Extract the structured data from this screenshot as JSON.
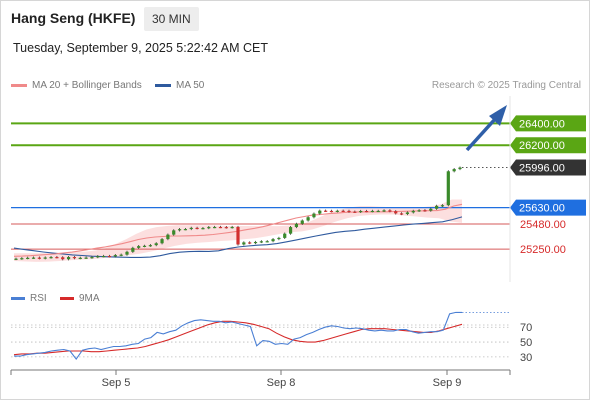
{
  "header": {
    "title": "Hang Seng (HKFE)",
    "timeframe": "30 MIN",
    "datetime": "Tuesday, September 9, 2025 5:22:42 AM CET"
  },
  "legend": {
    "items": [
      {
        "label": "MA 20 + Bollinger Bands",
        "color": "#f08a8a"
      },
      {
        "label": "MA 50",
        "color": "#2f5a9e"
      }
    ],
    "copyright": "Research © 2025 Trading Central"
  },
  "rsi_legend": {
    "items": [
      {
        "label": "RSI",
        "color": "#4a7fd4"
      },
      {
        "label": "9MA",
        "color": "#d62a2a"
      }
    ]
  },
  "colors": {
    "green_level": "#5aa614",
    "blue_level": "#1f6fe0",
    "red_level": "#d65a5a",
    "current_price": "#333333",
    "arrow": "#2f5fa8",
    "bollinger_fill": "#fbd9d9",
    "candle_up": "#3a8a2a",
    "candle_down": "#d23030"
  },
  "chart_data": [
    {
      "type": "candlestick",
      "title": "Hang Seng (HKFE)",
      "ylim": [
        24950,
        26650
      ],
      "x_ticks": [
        "Sep 5",
        "Sep 8",
        "Sep 9"
      ],
      "levels": [
        {
          "value": 26400.0,
          "label": "26400.00",
          "kind": "resistance"
        },
        {
          "value": 26200.0,
          "label": "26200.00",
          "kind": "resistance"
        },
        {
          "value": 25996.0,
          "label": "25996.00",
          "kind": "current"
        },
        {
          "value": 25630.0,
          "label": "25630.00",
          "kind": "pivot"
        },
        {
          "value": 25480.0,
          "label": "25480.00",
          "kind": "support"
        },
        {
          "value": 25250.0,
          "label": "25250.00",
          "kind": "support"
        }
      ],
      "close": [
        25163,
        25168,
        25171,
        25173,
        25167,
        25174,
        25178,
        25176,
        25158,
        25178,
        25168,
        25171,
        25173,
        25178,
        25186,
        25188,
        25184,
        25196,
        25200,
        25226,
        25262,
        25278,
        25281,
        25287,
        25304,
        25342,
        25383,
        25422,
        25433,
        25434,
        25445,
        25441,
        25443,
        25452,
        25453,
        25452,
        25448,
        25453,
        25293,
        25312,
        25306,
        25316,
        25322,
        25323,
        25342,
        25353,
        25392,
        25452,
        25482,
        25512,
        25542,
        25575,
        25602,
        25600,
        25596,
        25601,
        25600,
        25593,
        25591,
        25599,
        25597,
        25600,
        25600,
        25605,
        25597,
        25577,
        25571,
        25586,
        25600,
        25606,
        25602,
        25619,
        25646,
        25652,
        25962,
        25982,
        25996
      ],
      "ma50": [
        25260,
        25248,
        25236,
        25224,
        25214,
        25206,
        25198,
        25192,
        25186,
        25182,
        25179,
        25177,
        25175,
        25175,
        25178,
        25190,
        25210,
        25222,
        25228,
        25231,
        25230,
        25235,
        25255,
        25270,
        25279,
        25286,
        25291,
        25301,
        25317,
        25335,
        25353,
        25370,
        25387,
        25403,
        25413,
        25420,
        25433,
        25442,
        25452,
        25461,
        25471,
        25479,
        25486,
        25493,
        25500,
        25520,
        25545
      ],
      "ma20": [
        25185,
        25187,
        25190,
        25196,
        25201,
        25207,
        25216,
        25223,
        25235,
        25247,
        25260,
        25271,
        25285,
        25300,
        25318,
        25338,
        25352,
        25361,
        25366,
        25370,
        25370,
        25372,
        25374,
        25378,
        25384,
        25393,
        25403,
        25414,
        25428,
        25441,
        25455,
        25474,
        25495,
        25515,
        25535,
        25549,
        25561,
        25567,
        25575,
        25580,
        25587,
        25589,
        25592,
        25591,
        25592,
        25592,
        25594,
        25596,
        25598,
        25600,
        25602,
        25603,
        25615,
        25645,
        25660
      ],
      "bollinger_upper": [
        25212,
        25212,
        25212,
        25214,
        25218,
        25220,
        25225,
        25228,
        25238,
        25258,
        25298,
        25340,
        25390,
        25430,
        25452,
        25462,
        25469,
        25469,
        25469,
        25467,
        25466,
        25462,
        25462,
        25462,
        25461,
        25461,
        25461,
        25466,
        25475,
        25501,
        25542,
        25582,
        25612,
        25632,
        25644,
        25644,
        25638,
        25634,
        25633,
        25632,
        25634,
        25643,
        25663,
        25704,
        25704
      ],
      "bollinger_lower": [
        25142,
        25137,
        25134,
        25136,
        25142,
        25150,
        25155,
        25160,
        25170,
        25180,
        25195,
        25210,
        25230,
        25255,
        25280,
        25298,
        25308,
        25316,
        25325,
        25330,
        25341,
        25350,
        25367,
        25387,
        25405,
        25412,
        25431,
        25464,
        25502,
        25532,
        25553,
        25562,
        25567,
        25567,
        25557,
        25549,
        25539,
        25532,
        25503,
        25490
      ]
    },
    {
      "type": "line",
      "title": "RSI",
      "ylim": [
        15,
        100
      ],
      "y_ticks": [
        70,
        50,
        30
      ],
      "x_ticks": [
        "Sep 5",
        "Sep 8",
        "Sep 9"
      ],
      "series": [
        {
          "name": "RSI",
          "values": [
            31,
            31,
            33,
            34,
            35,
            36,
            38,
            39,
            40,
            38,
            27,
            39,
            41,
            42,
            40,
            42,
            44,
            44,
            45,
            47,
            48,
            54,
            56,
            63,
            61,
            64,
            66,
            72,
            76,
            79,
            80,
            79,
            78,
            78,
            76,
            77,
            75,
            73,
            71,
            45,
            52,
            51,
            47,
            48,
            47,
            54,
            56,
            60,
            63,
            67,
            70,
            72,
            71,
            69,
            68,
            69,
            68,
            66,
            65,
            66,
            65,
            65,
            67,
            67,
            64,
            62,
            63,
            64,
            64,
            66,
            88,
            90,
            90
          ]
        },
        {
          "name": "9MA",
          "values": [
            33,
            34,
            34,
            35,
            35,
            36,
            37,
            38,
            38,
            38,
            37,
            37,
            38,
            39,
            40,
            41,
            42,
            44,
            47,
            50,
            53,
            57,
            61,
            65,
            69,
            73,
            76,
            78,
            78,
            77,
            76,
            74,
            71,
            68,
            62,
            57,
            53,
            51,
            50,
            50,
            52,
            55,
            58,
            61,
            64,
            67,
            68,
            68,
            68,
            67,
            66,
            65,
            64,
            63,
            63,
            65,
            68,
            71,
            74
          ]
        }
      ]
    }
  ]
}
